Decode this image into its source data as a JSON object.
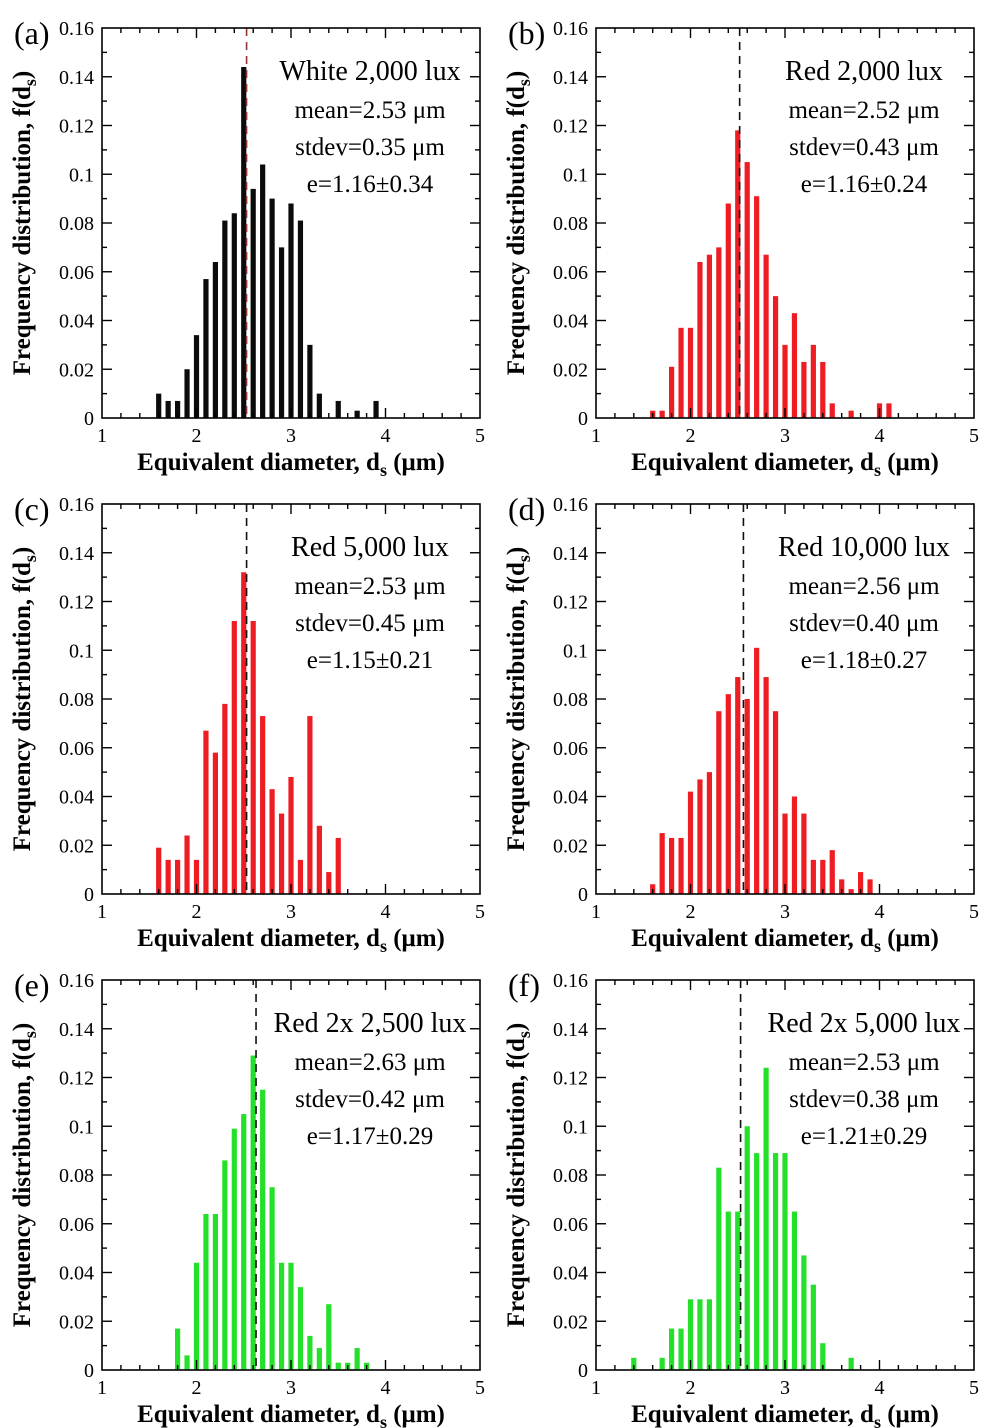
{
  "figure": {
    "xlabel": {
      "pre": "Equivalent diameter, d",
      "sub": "s",
      "post": " (μm)"
    },
    "ylabel": {
      "pre": "Frequency distribution, f(d",
      "sub": "s",
      "post": ")"
    },
    "x_tick_labels": [
      "1",
      "2",
      "3",
      "4",
      "5"
    ],
    "y_tick_labels": [
      "0",
      "0.02",
      "0.04",
      "0.06",
      "0.08",
      "0.1",
      "0.12",
      "0.14",
      "0.16"
    ],
    "xlim": [
      1,
      5
    ],
    "ylim": [
      0,
      0.16
    ],
    "grid": "off",
    "colors": {
      "black_bars": "#0b0b0b",
      "red_bars": "#ee1c23",
      "green_bars": "#25e02b",
      "mean_line_red": "#993333",
      "mean_line_black": "#111111"
    }
  },
  "chart_data": [
    {
      "type": "bar",
      "panel_letter": "(a)",
      "title": "White 2,000 lux",
      "mean_label": "mean=2.53 μm",
      "stdev_label": "stdev=0.35 μm",
      "e_label": "e=1.16±0.34",
      "mean": 2.53,
      "bar_color": "#0b0b0b",
      "mean_line_color": "#993333",
      "x": [
        1.6,
        1.7,
        1.8,
        1.9,
        2.0,
        2.1,
        2.2,
        2.3,
        2.4,
        2.5,
        2.6,
        2.7,
        2.8,
        2.9,
        3.0,
        3.1,
        3.2,
        3.3,
        3.5,
        3.7,
        3.9
      ],
      "values": [
        0.01,
        0.007,
        0.007,
        0.02,
        0.034,
        0.057,
        0.064,
        0.081,
        0.084,
        0.144,
        0.094,
        0.104,
        0.09,
        0.07,
        0.088,
        0.081,
        0.03,
        0.01,
        0.007,
        0.003,
        0.007
      ]
    },
    {
      "type": "bar",
      "panel_letter": "(b)",
      "title": "Red 2,000 lux",
      "mean_label": "mean=2.52 μm",
      "stdev_label": "stdev=0.43 μm",
      "e_label": "e=1.16±0.24",
      "mean": 2.52,
      "bar_color": "#ee1c23",
      "mean_line_color": "#111111",
      "x": [
        1.6,
        1.7,
        1.8,
        1.9,
        2.0,
        2.1,
        2.2,
        2.3,
        2.4,
        2.5,
        2.6,
        2.7,
        2.8,
        2.9,
        3.0,
        3.1,
        3.2,
        3.3,
        3.4,
        3.5,
        3.7,
        4.0,
        4.1
      ],
      "values": [
        0.003,
        0.003,
        0.021,
        0.037,
        0.037,
        0.064,
        0.067,
        0.07,
        0.088,
        0.118,
        0.105,
        0.091,
        0.067,
        0.05,
        0.03,
        0.043,
        0.023,
        0.03,
        0.023,
        0.006,
        0.003,
        0.006,
        0.006
      ]
    },
    {
      "type": "bar",
      "panel_letter": "(c)",
      "title": "Red 5,000 lux",
      "mean_label": "mean=2.53 μm",
      "stdev_label": "stdev=0.45 μm",
      "e_label": "e=1.15±0.21",
      "mean": 2.53,
      "bar_color": "#ee1c23",
      "mean_line_color": "#111111",
      "x": [
        1.6,
        1.7,
        1.8,
        1.9,
        2.0,
        2.1,
        2.2,
        2.3,
        2.4,
        2.5,
        2.6,
        2.7,
        2.8,
        2.9,
        3.0,
        3.1,
        3.2,
        3.3,
        3.4,
        3.5
      ],
      "values": [
        0.019,
        0.014,
        0.014,
        0.024,
        0.014,
        0.067,
        0.058,
        0.078,
        0.112,
        0.132,
        0.112,
        0.073,
        0.043,
        0.033,
        0.048,
        0.014,
        0.073,
        0.028,
        0.009,
        0.023
      ]
    },
    {
      "type": "bar",
      "panel_letter": "(d)",
      "title": "Red 10,000 lux",
      "mean_label": "mean=2.56 μm",
      "stdev_label": "stdev=0.40 μm",
      "e_label": "e=1.18±0.27",
      "mean": 2.56,
      "bar_color": "#ee1c23",
      "mean_line_color": "#111111",
      "x": [
        1.6,
        1.7,
        1.8,
        1.9,
        2.0,
        2.1,
        2.2,
        2.3,
        2.4,
        2.5,
        2.6,
        2.7,
        2.8,
        2.9,
        3.0,
        3.1,
        3.2,
        3.3,
        3.4,
        3.5,
        3.6,
        3.7,
        3.8,
        3.9
      ],
      "values": [
        0.004,
        0.025,
        0.023,
        0.023,
        0.042,
        0.047,
        0.05,
        0.075,
        0.082,
        0.089,
        0.08,
        0.101,
        0.089,
        0.075,
        0.033,
        0.04,
        0.033,
        0.014,
        0.014,
        0.018,
        0.006,
        0.002,
        0.009,
        0.006
      ]
    },
    {
      "type": "bar",
      "panel_letter": "(e)",
      "title": "Red 2x 2,500 lux",
      "mean_label": "mean=2.63 μm",
      "stdev_label": "stdev=0.42 μm",
      "e_label": "e=1.17±0.29",
      "mean": 2.63,
      "bar_color": "#25e02b",
      "mean_line_color": "#111111",
      "x": [
        1.8,
        1.9,
        2.0,
        2.1,
        2.2,
        2.3,
        2.4,
        2.5,
        2.6,
        2.7,
        2.8,
        2.9,
        3.0,
        3.1,
        3.2,
        3.3,
        3.4,
        3.5,
        3.6,
        3.7,
        3.8
      ],
      "values": [
        0.017,
        0.006,
        0.044,
        0.064,
        0.064,
        0.086,
        0.099,
        0.105,
        0.129,
        0.115,
        0.075,
        0.044,
        0.044,
        0.034,
        0.014,
        0.009,
        0.027,
        0.003,
        0.003,
        0.009,
        0.003
      ]
    },
    {
      "type": "bar",
      "panel_letter": "(f)",
      "title": "Red 2x 5,000 lux",
      "mean_label": "mean=2.53 μm",
      "stdev_label": "stdev=0.38 μm",
      "e_label": "e=1.21±0.29",
      "mean": 2.53,
      "bar_color": "#25e02b",
      "mean_line_color": "#111111",
      "x": [
        1.4,
        1.7,
        1.8,
        1.9,
        2.0,
        2.1,
        2.2,
        2.3,
        2.4,
        2.5,
        2.6,
        2.7,
        2.8,
        2.9,
        3.0,
        3.1,
        3.2,
        3.3,
        3.4,
        3.7
      ],
      "values": [
        0.005,
        0.005,
        0.017,
        0.017,
        0.029,
        0.029,
        0.029,
        0.083,
        0.065,
        0.065,
        0.1,
        0.089,
        0.124,
        0.089,
        0.089,
        0.065,
        0.047,
        0.035,
        0.011,
        0.005
      ]
    }
  ]
}
